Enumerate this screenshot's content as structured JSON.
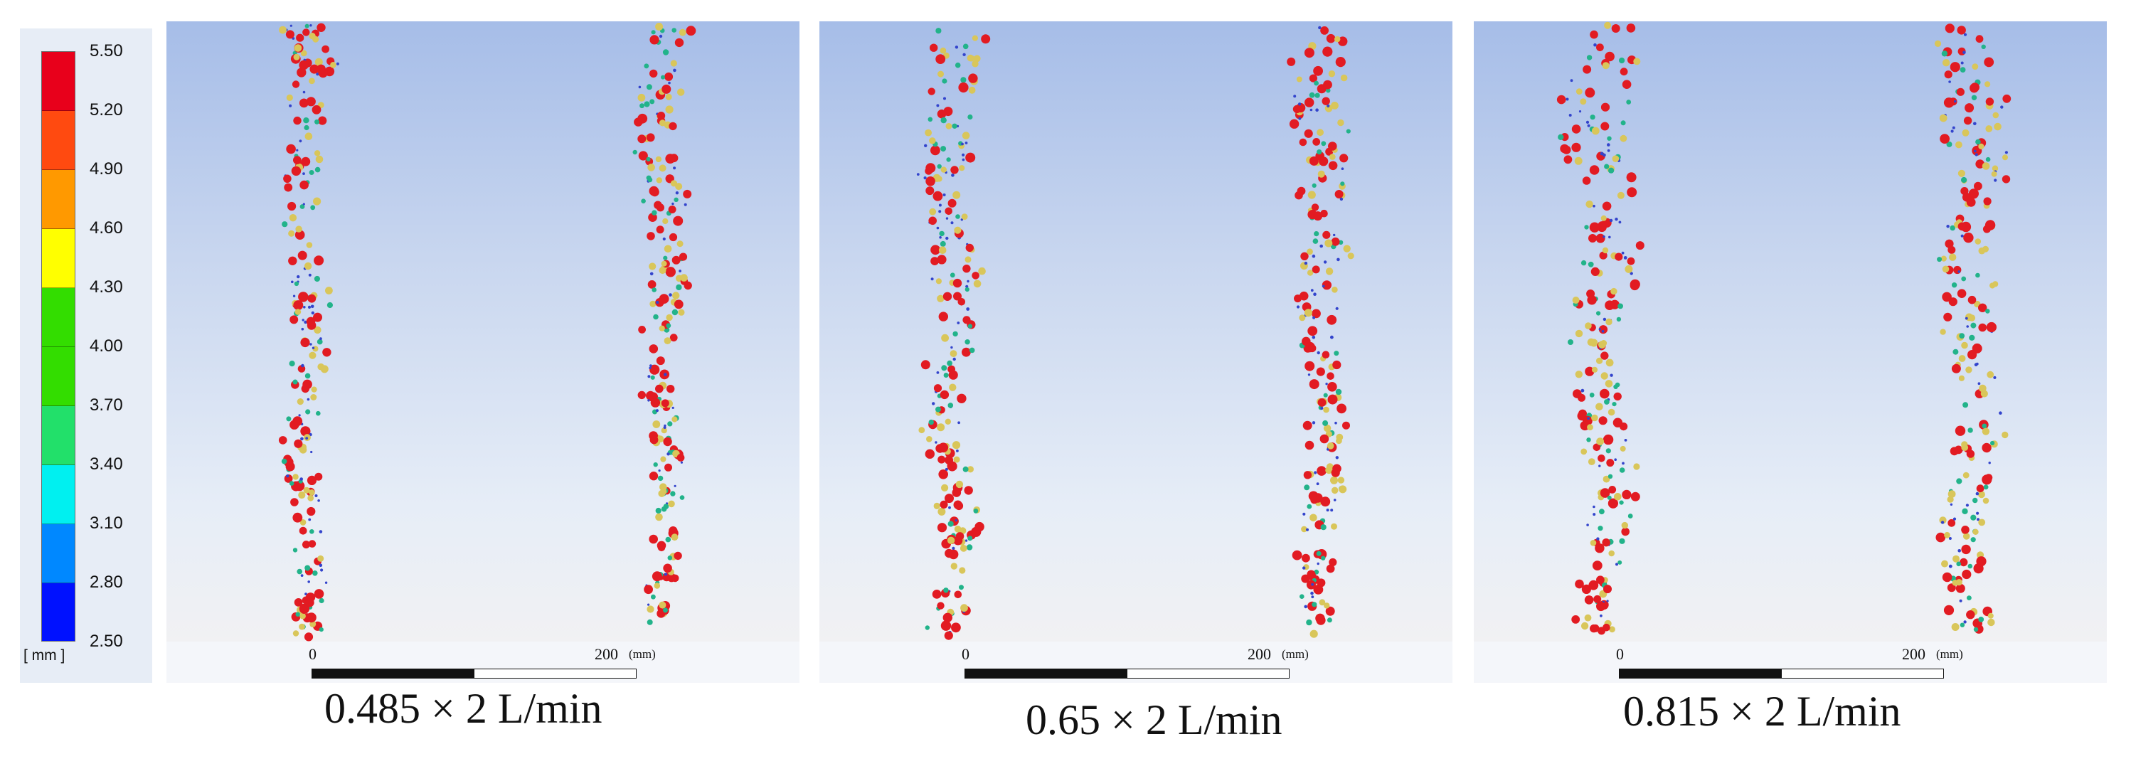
{
  "legend": {
    "unit": "[ mm ]",
    "ticks": [
      "5.50",
      "5.20",
      "4.90",
      "4.60",
      "4.30",
      "4.00",
      "3.70",
      "3.40",
      "3.10",
      "2.80",
      "2.50"
    ],
    "band_colors": [
      "#e8001b",
      "#ff4a10",
      "#ff9900",
      "#ffff00",
      "#33dd00",
      "#22e06a",
      "#00f0f0",
      "#0088ff",
      "#0011ff"
    ]
  },
  "panels": [
    {
      "caption": "0.485 × 2 L/min",
      "scale_zero": "0",
      "scale_max": "200",
      "scale_unit": "(mm)"
    },
    {
      "caption": "0.65 × 2 L/min",
      "scale_zero": "0",
      "scale_max": "200",
      "scale_unit": "(mm)"
    },
    {
      "caption": "0.815 × 2 L/min",
      "scale_zero": "0",
      "scale_max": "200",
      "scale_unit": "(mm)"
    }
  ],
  "particle_colors": {
    "large": "#e21b22",
    "medium": "#d9c65a",
    "teal": "#22b38a",
    "small": "#3344cc"
  }
}
